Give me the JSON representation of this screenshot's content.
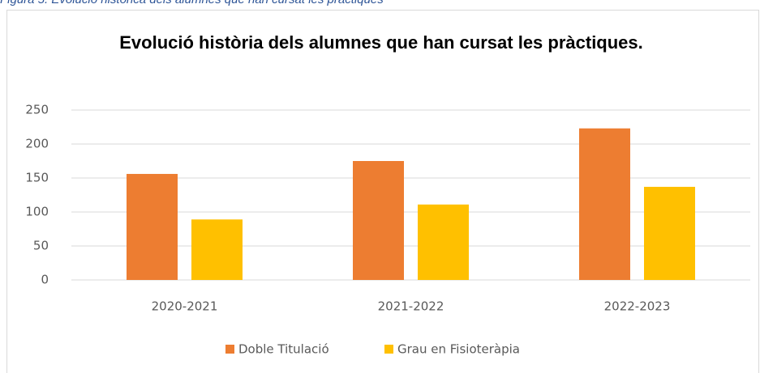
{
  "caption": "Figura 5. Evolució històrica dels alumnes que han cursat les pràctiques",
  "chart_data": {
    "type": "bar",
    "title": "Evolució història dels alumnes que han cursat les pràctiques.",
    "categories": [
      "2020-2021",
      "2021-2022",
      "2022-2023"
    ],
    "series": [
      {
        "name": "Doble Titulació",
        "color": "#ed7d31",
        "values": [
          156,
          175,
          223
        ]
      },
      {
        "name": "Grau en Fisioteràpia",
        "color": "#ffc000",
        "values": [
          89,
          111,
          137
        ]
      }
    ],
    "ylim": [
      0,
      250
    ],
    "yticks": [
      0,
      50,
      100,
      150,
      200,
      250
    ],
    "grid": true,
    "legend": "bottom"
  }
}
